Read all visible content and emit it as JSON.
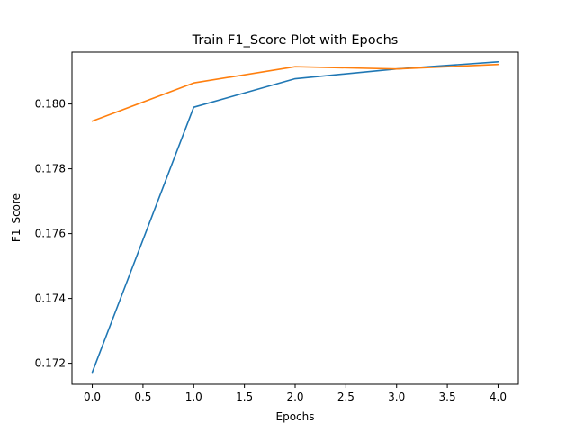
{
  "chart_data": {
    "type": "line",
    "title": "Train F1_Score Plot with Epochs",
    "xlabel": "Epochs",
    "ylabel": "F1_Score",
    "x": [
      0,
      1,
      2,
      3,
      4
    ],
    "xlim": [
      -0.2,
      4.2
    ],
    "ylim": [
      0.17135,
      0.1816
    ],
    "xticks": [
      0.0,
      0.5,
      1.0,
      1.5,
      2.0,
      2.5,
      3.0,
      3.5,
      4.0
    ],
    "xtick_labels": [
      "0.0",
      "0.5",
      "1.0",
      "1.5",
      "2.0",
      "2.5",
      "3.0",
      "3.5",
      "4.0"
    ],
    "yticks": [
      0.172,
      0.174,
      0.176,
      0.178,
      0.18
    ],
    "ytick_labels": [
      "0.172",
      "0.174",
      "0.176",
      "0.178",
      "0.180"
    ],
    "grid": false,
    "series": [
      {
        "color": "#1f77b4",
        "values": [
          0.17172,
          0.1799,
          0.18078,
          0.18108,
          0.1813
        ]
      },
      {
        "color": "#ff7f0e",
        "values": [
          0.17947,
          0.18065,
          0.18115,
          0.18108,
          0.18122
        ]
      }
    ]
  }
}
